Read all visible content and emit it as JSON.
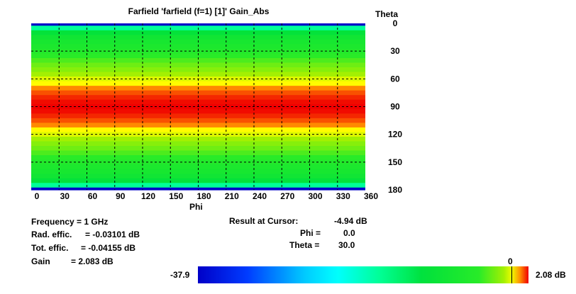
{
  "title": "Farfield 'farfield (f=1) [1]' Gain_Abs",
  "axis": {
    "ylabel": "Theta",
    "xlabel": "Phi",
    "yticks": [
      "0",
      "30",
      "60",
      "90",
      "120",
      "150",
      "180"
    ],
    "xticks": [
      "0",
      "30",
      "60",
      "90",
      "120",
      "150",
      "180",
      "210",
      "240",
      "270",
      "300",
      "330",
      "360"
    ]
  },
  "info": {
    "frequency": "Frequency = 1 GHz",
    "rad_label": "Rad. effic.",
    "rad_value": "= -0.03101 dB",
    "tot_label": "Tot. effic.",
    "tot_value": "= -0.04155 dB",
    "gain_label": "Gain",
    "gain_value": "=   2.083 dB"
  },
  "cursor": {
    "result_label": "Result at Cursor:",
    "result_value": "-4.94 dB",
    "phi_label": "Phi =",
    "phi_value": "0.0",
    "theta_label": "Theta =",
    "theta_value": "30.0"
  },
  "colorbar": {
    "min_label": "-37.9",
    "max_label": "2.08 dB",
    "zero_label": "0",
    "min": -37.9,
    "max": 2.08
  },
  "chart_data": {
    "type": "heatmap",
    "title": "Farfield 'farfield (f=1) [1]' Gain_Abs",
    "xlabel": "Phi",
    "ylabel": "Theta",
    "xlim": [
      0,
      360
    ],
    "ylim": [
      0,
      180
    ],
    "grid": true,
    "unit": "dB",
    "color_range": [
      -37.9,
      2.08
    ],
    "note_values_constant_across_phi": true,
    "theta": [
      0,
      5,
      10,
      15,
      20,
      25,
      30,
      35,
      40,
      45,
      50,
      55,
      60,
      65,
      70,
      75,
      80,
      85,
      90,
      95,
      100,
      105,
      110,
      115,
      120,
      125,
      130,
      135,
      140,
      145,
      150,
      155,
      160,
      165,
      170,
      175,
      180
    ],
    "gain_db": [
      -37.9,
      -16.0,
      -10.0,
      -7.9,
      -6.8,
      -5.9,
      -4.94,
      -3.9,
      -3.0,
      -2.2,
      -1.6,
      -0.9,
      -0.1,
      0.3,
      1.1,
      1.5,
      1.8,
      2.0,
      2.08,
      2.0,
      1.8,
      1.5,
      1.1,
      0.3,
      -0.1,
      -0.9,
      -1.6,
      -2.2,
      -3.0,
      -3.9,
      -4.94,
      -5.9,
      -6.8,
      -7.9,
      -10.0,
      -16.0,
      -37.9
    ]
  }
}
